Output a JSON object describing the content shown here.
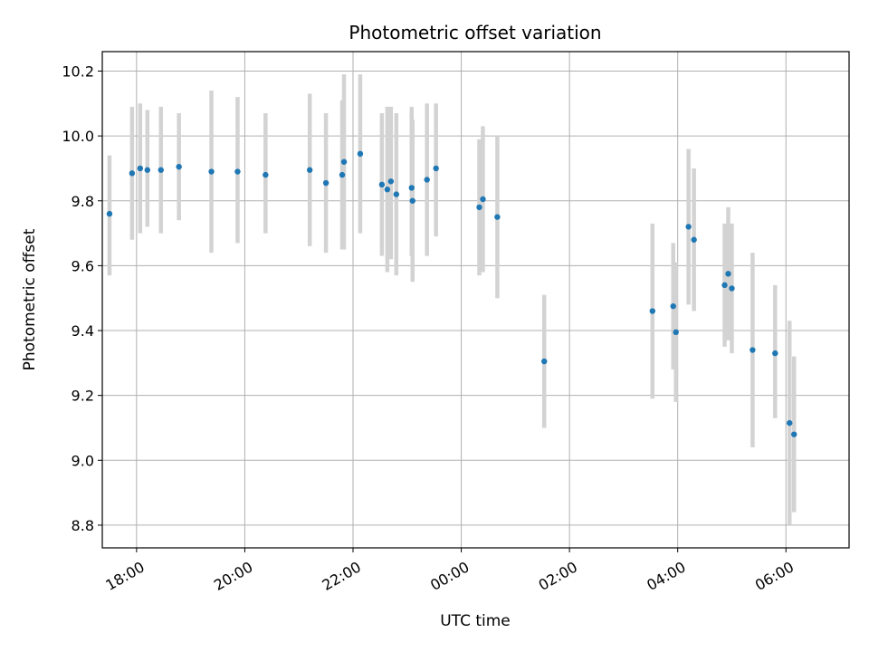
{
  "chart_data": {
    "type": "scatter",
    "title": "Photometric offset variation",
    "xlabel": "UTC time",
    "ylabel": "Photometric offset",
    "x_range": [
      "17:22",
      "07:10"
    ],
    "ylim": [
      8.73,
      10.26
    ],
    "x_ticks": [
      "18:00",
      "20:00",
      "22:00",
      "00:00",
      "02:00",
      "04:00",
      "06:00"
    ],
    "y_ticks": [
      "8.8",
      "9.0",
      "9.2",
      "9.4",
      "9.6",
      "9.8",
      "10.0",
      "10.2"
    ],
    "grid": true,
    "marker_color": "#1f77b4",
    "errorbar_color": "#d3d3d3",
    "points": [
      {
        "t": "17:30",
        "y": 9.76,
        "lo": 9.57,
        "hi": 9.94
      },
      {
        "t": "17:55",
        "y": 9.885,
        "lo": 9.68,
        "hi": 10.09
      },
      {
        "t": "18:04",
        "y": 9.9,
        "lo": 9.7,
        "hi": 10.1
      },
      {
        "t": "18:12",
        "y": 9.895,
        "lo": 9.72,
        "hi": 10.08
      },
      {
        "t": "18:27",
        "y": 9.895,
        "lo": 9.7,
        "hi": 10.09
      },
      {
        "t": "18:47",
        "y": 9.905,
        "lo": 9.74,
        "hi": 10.07
      },
      {
        "t": "19:23",
        "y": 9.89,
        "lo": 9.64,
        "hi": 10.14
      },
      {
        "t": "19:52",
        "y": 9.89,
        "lo": 9.67,
        "hi": 10.12
      },
      {
        "t": "20:23",
        "y": 9.88,
        "lo": 9.7,
        "hi": 10.07
      },
      {
        "t": "21:12",
        "y": 9.895,
        "lo": 9.66,
        "hi": 10.13
      },
      {
        "t": "21:30",
        "y": 9.855,
        "lo": 9.64,
        "hi": 10.07
      },
      {
        "t": "21:48",
        "y": 9.88,
        "lo": 9.65,
        "hi": 10.11
      },
      {
        "t": "21:50",
        "y": 9.92,
        "lo": 9.65,
        "hi": 10.19
      },
      {
        "t": "22:08",
        "y": 9.945,
        "lo": 9.7,
        "hi": 10.19
      },
      {
        "t": "22:32",
        "y": 9.85,
        "lo": 9.63,
        "hi": 10.07
      },
      {
        "t": "22:38",
        "y": 9.835,
        "lo": 9.58,
        "hi": 10.09
      },
      {
        "t": "22:42",
        "y": 9.86,
        "lo": 9.62,
        "hi": 10.09
      },
      {
        "t": "22:48",
        "y": 9.82,
        "lo": 9.57,
        "hi": 10.07
      },
      {
        "t": "23:05",
        "y": 9.84,
        "lo": 9.63,
        "hi": 10.09
      },
      {
        "t": "23:06",
        "y": 9.8,
        "lo": 9.55,
        "hi": 10.05
      },
      {
        "t": "23:22",
        "y": 9.865,
        "lo": 9.63,
        "hi": 10.1
      },
      {
        "t": "23:32",
        "y": 9.9,
        "lo": 9.69,
        "hi": 10.1
      },
      {
        "t": "00:20",
        "y": 9.78,
        "lo": 9.57,
        "hi": 9.99
      },
      {
        "t": "00:24",
        "y": 9.805,
        "lo": 9.58,
        "hi": 10.03
      },
      {
        "t": "00:40",
        "y": 9.75,
        "lo": 9.5,
        "hi": 10.0
      },
      {
        "t": "01:32",
        "y": 9.305,
        "lo": 9.1,
        "hi": 9.51
      },
      {
        "t": "03:32",
        "y": 9.46,
        "lo": 9.19,
        "hi": 9.73
      },
      {
        "t": "03:55",
        "y": 9.475,
        "lo": 9.28,
        "hi": 9.67
      },
      {
        "t": "03:58",
        "y": 9.395,
        "lo": 9.18,
        "hi": 9.61
      },
      {
        "t": "04:12",
        "y": 9.72,
        "lo": 9.48,
        "hi": 9.96
      },
      {
        "t": "04:18",
        "y": 9.68,
        "lo": 9.46,
        "hi": 9.9
      },
      {
        "t": "04:52",
        "y": 9.54,
        "lo": 9.35,
        "hi": 9.73
      },
      {
        "t": "04:56",
        "y": 9.575,
        "lo": 9.37,
        "hi": 9.78
      },
      {
        "t": "05:00",
        "y": 9.53,
        "lo": 9.33,
        "hi": 9.73
      },
      {
        "t": "05:23",
        "y": 9.34,
        "lo": 9.04,
        "hi": 9.64
      },
      {
        "t": "05:48",
        "y": 9.33,
        "lo": 9.13,
        "hi": 9.54
      },
      {
        "t": "06:04",
        "y": 9.115,
        "lo": 8.8,
        "hi": 9.43
      },
      {
        "t": "06:09",
        "y": 9.08,
        "lo": 8.84,
        "hi": 9.32
      }
    ]
  }
}
